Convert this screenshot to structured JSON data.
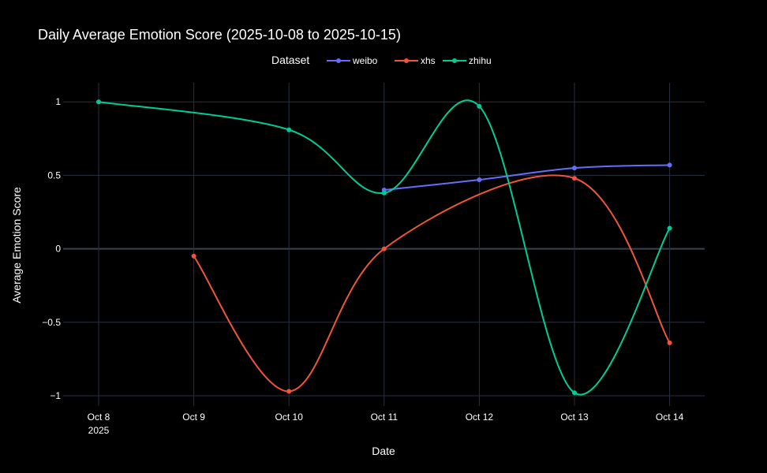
{
  "chart_data": {
    "type": "line",
    "title": "Daily Average Emotion Score (2025-10-08 to 2025-10-15)",
    "xlabel": "Date",
    "ylabel": "Average Emotion Score",
    "x_categories": [
      "Oct 8",
      "Oct 9",
      "Oct 10",
      "Oct 11",
      "Oct 12",
      "Oct 13",
      "Oct 14"
    ],
    "x_year_label": "2025",
    "ylim": [
      -1.07,
      1.13
    ],
    "yticks": [
      {
        "value": 1,
        "label": "1"
      },
      {
        "value": 0.5,
        "label": "0.5"
      },
      {
        "value": 0,
        "label": "0"
      },
      {
        "value": -0.5,
        "label": "−0.5"
      },
      {
        "value": -1,
        "label": "−1"
      }
    ],
    "grid": true,
    "legend": {
      "title": "Dataset",
      "placement": "top-center"
    },
    "series": [
      {
        "name": "weibo",
        "color": "#636efa",
        "values": [
          null,
          null,
          null,
          0.4,
          0.47,
          0.55,
          0.57
        ]
      },
      {
        "name": "xhs",
        "color": "#ef553b",
        "values": [
          null,
          -0.05,
          -0.97,
          0.0,
          null,
          0.48,
          -0.64
        ]
      },
      {
        "name": "zhihu",
        "color": "#00cc96",
        "values": [
          1.0,
          null,
          0.81,
          0.38,
          0.97,
          -0.98,
          0.14
        ]
      }
    ]
  }
}
